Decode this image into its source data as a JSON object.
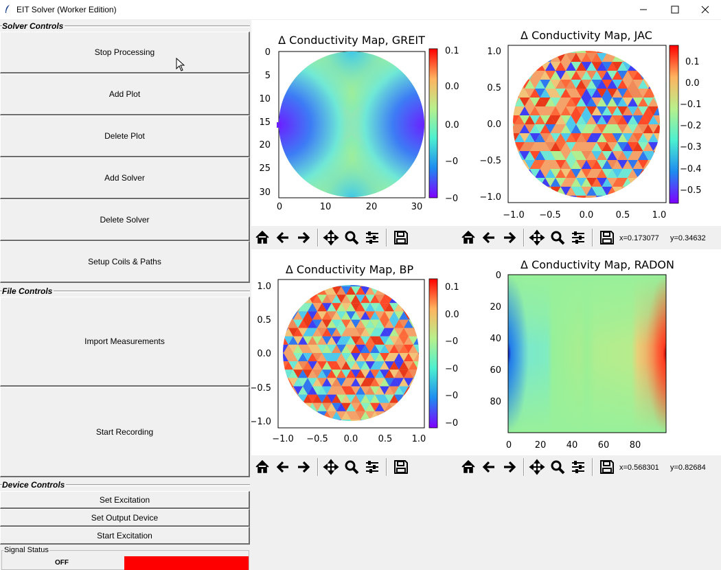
{
  "window": {
    "title": "EIT Solver (Worker Edition)"
  },
  "solver_controls": {
    "label": "Solver Controls",
    "buttons": [
      "Stop Processing",
      "Add Plot",
      "Delete Plot",
      "Add Solver",
      "Delete Solver",
      "Setup Coils & Paths"
    ]
  },
  "file_controls": {
    "label": "File Controls",
    "buttons": [
      "Import Measurements",
      "Start Recording"
    ]
  },
  "device_controls": {
    "label": "Device Controls",
    "buttons": [
      "Set Excitation",
      "Set Output Device",
      "Start Excitation"
    ]
  },
  "signal_status": {
    "label": "Signal Status",
    "state": "OFF",
    "color": "#ff0000"
  },
  "plots": {
    "greit": {
      "title": "Δ Conductivity Map, GREIT",
      "x_ticks": [
        "0",
        "10",
        "20",
        "30"
      ],
      "y_ticks": [
        "0",
        "5",
        "10",
        "15",
        "20",
        "25",
        "30"
      ],
      "cbar_ticks": [
        "0.1",
        "0.0",
        "0.0",
        "−0",
        "−0",
        "−0"
      ]
    },
    "jac": {
      "title": "Δ Conductivity Map, JAC",
      "x_ticks": [
        "−1.0",
        "−0.5",
        "0.0",
        "0.5",
        "1.0"
      ],
      "y_ticks": [
        "1.0",
        "0.5",
        "0.0",
        "−0.5",
        "−1.0"
      ],
      "cbar_ticks": [
        "0.1",
        "0.0",
        "−0.1",
        "−0.2",
        "−0.3",
        "−0.4",
        "−0.5"
      ]
    },
    "bp": {
      "title": "Δ Conductivity Map, BP",
      "x_ticks": [
        "−1.0",
        "−0.5",
        "0.0",
        "0.5",
        "1.0"
      ],
      "y_ticks": [
        "1.0",
        "0.5",
        "0.0",
        "−0.5",
        "−1.0"
      ],
      "cbar_ticks": [
        "0.1",
        "0.0",
        "−0",
        "−0",
        "−0",
        "−0"
      ]
    },
    "radon": {
      "title": "Δ Conductivity Map, RADON",
      "x_ticks": [
        "0",
        "20",
        "40",
        "60",
        "80"
      ],
      "y_ticks": [
        "0",
        "20",
        "40",
        "60",
        "80"
      ]
    }
  },
  "toolbars": {
    "buttons": [
      "home-icon",
      "back-icon",
      "forward-icon",
      "pan-icon",
      "zoom-icon",
      "configure-subplots-icon",
      "save-icon"
    ],
    "top_right_coords": {
      "x": "x=0.173077",
      "y": "y=0.34632"
    },
    "bottom_right_coords": {
      "x": "x=0.568301",
      "y": "y=0.82684"
    }
  }
}
